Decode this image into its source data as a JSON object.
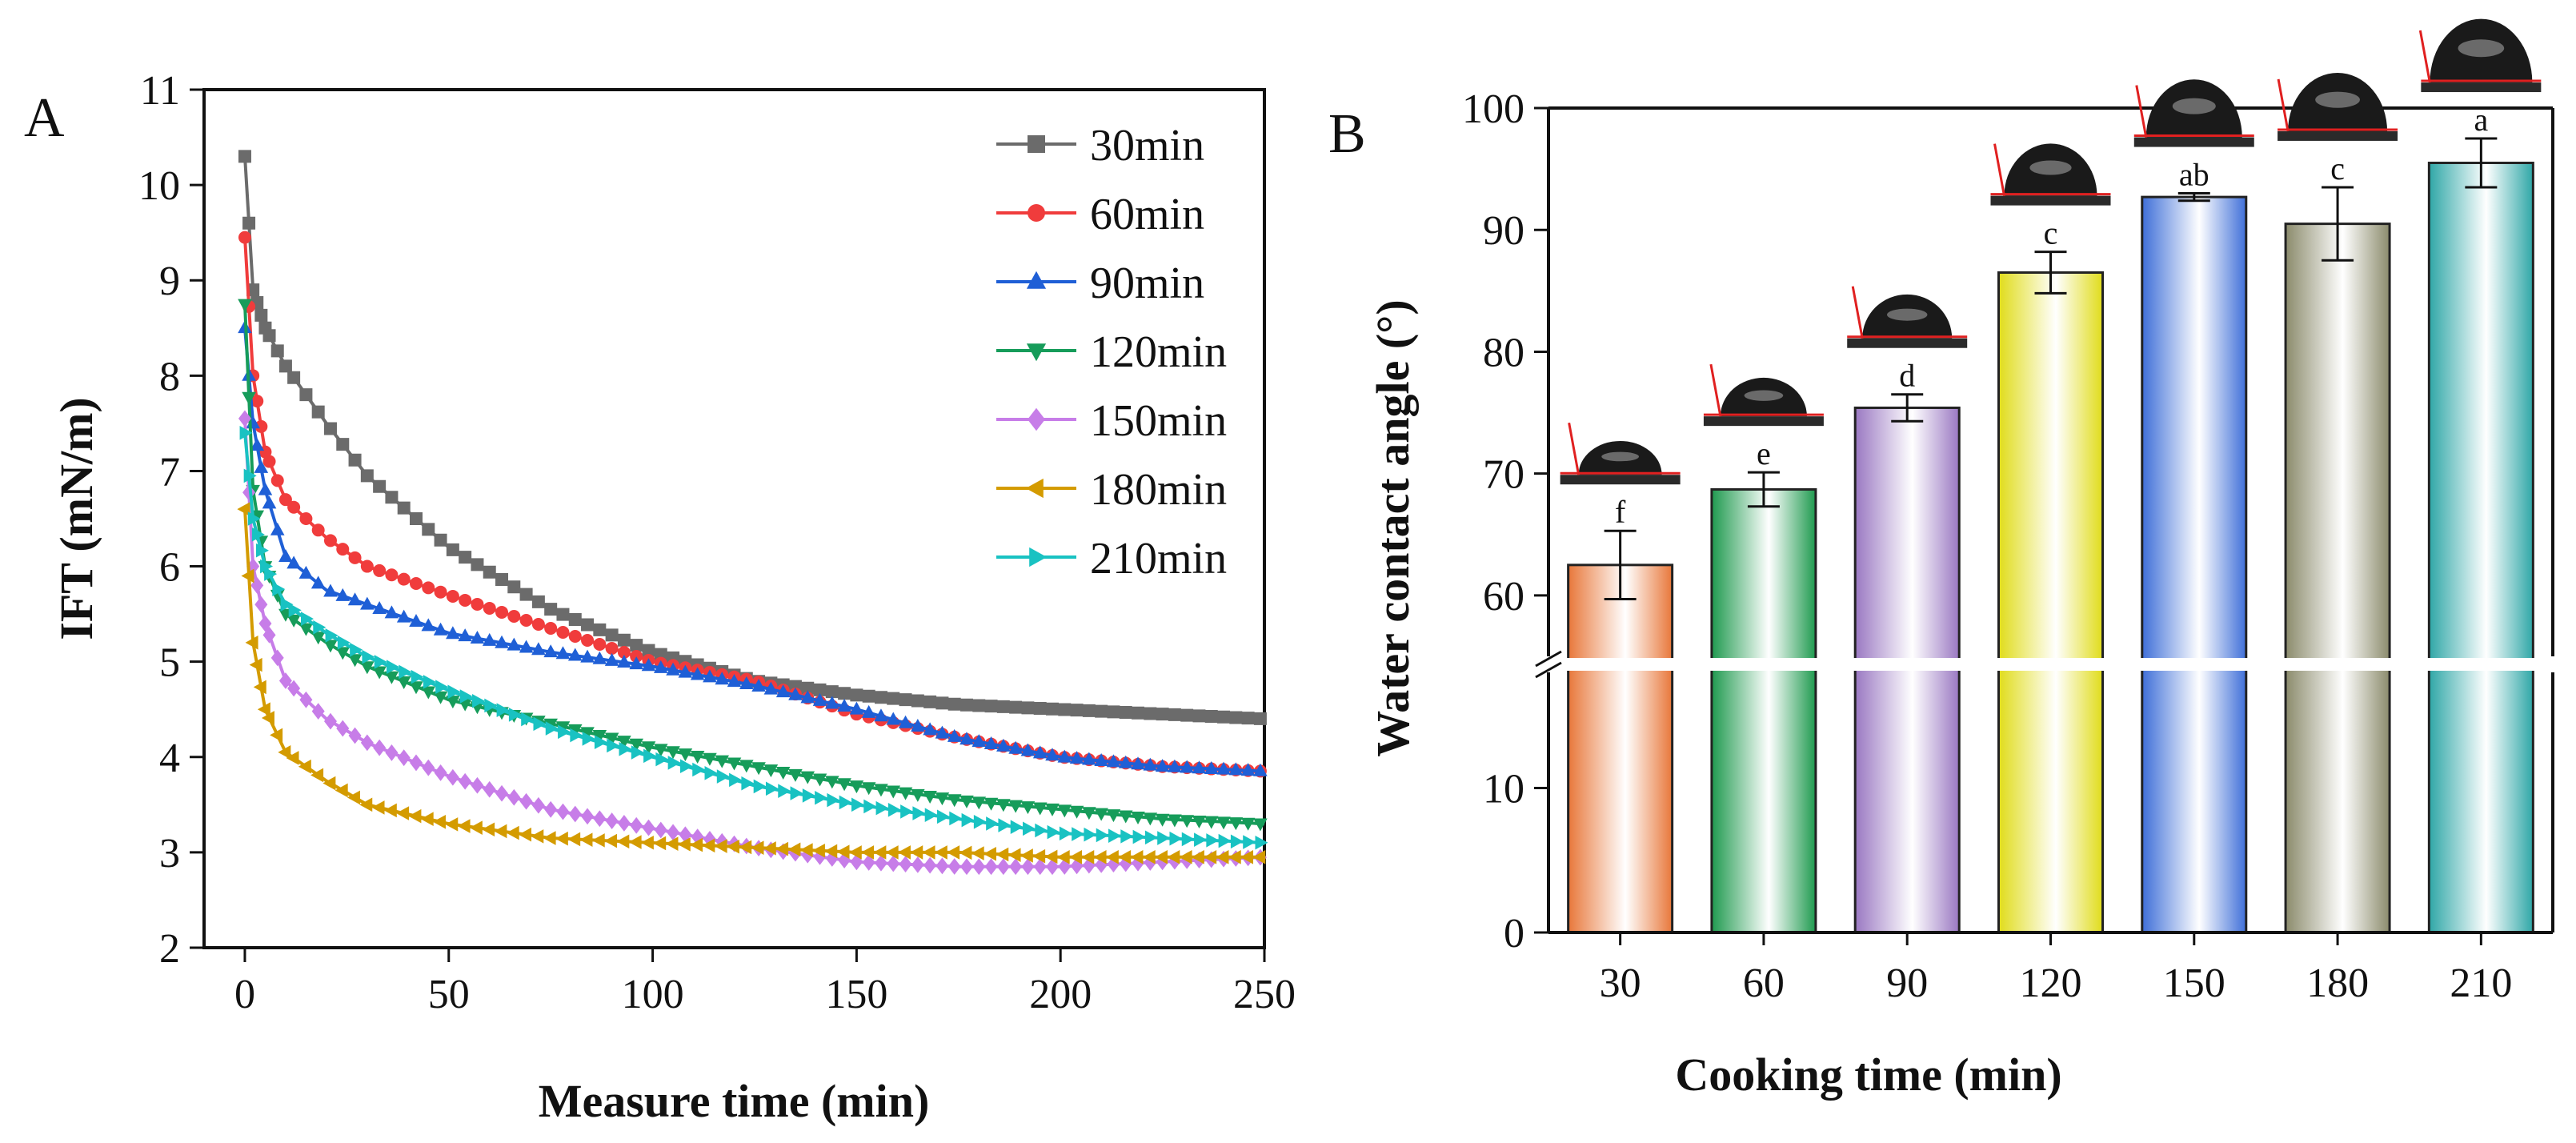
{
  "chart_data": [
    {
      "panel_label": "A",
      "type": "line",
      "title": "",
      "xlabel": "Measure time (min)",
      "ylabel": "IFT (mN/m)",
      "xlim": [
        -10,
        250
      ],
      "ylim": [
        2,
        11
      ],
      "xticks": [
        0,
        50,
        100,
        150,
        200,
        250
      ],
      "yticks": [
        2,
        3,
        4,
        5,
        6,
        7,
        8,
        9,
        10,
        11
      ],
      "grid": false,
      "legend": "top-right",
      "series": [
        {
          "name": "30min",
          "color": "#6b6b6b",
          "marker": "square",
          "x": [
            0,
            2,
            5,
            10,
            20,
            30,
            50,
            75,
            100,
            125,
            150,
            175,
            200,
            225,
            250
          ],
          "y": [
            10.3,
            8.9,
            8.5,
            8.1,
            7.5,
            6.95,
            6.2,
            5.55,
            5.1,
            4.8,
            4.65,
            4.55,
            4.5,
            4.45,
            4.4
          ]
        },
        {
          "name": "60min",
          "color": "#f03c3c",
          "marker": "circle",
          "x": [
            0,
            2,
            5,
            10,
            20,
            30,
            50,
            75,
            100,
            125,
            150,
            175,
            200,
            225,
            250
          ],
          "y": [
            9.45,
            8.0,
            7.2,
            6.7,
            6.3,
            6.0,
            5.7,
            5.35,
            5.0,
            4.8,
            4.45,
            4.2,
            4.0,
            3.9,
            3.85
          ]
        },
        {
          "name": "90min",
          "color": "#1f5fd6",
          "marker": "triangle-up",
          "x": [
            0,
            2,
            5,
            10,
            20,
            30,
            50,
            75,
            100,
            125,
            150,
            175,
            200,
            225,
            250
          ],
          "y": [
            8.5,
            7.5,
            6.8,
            6.1,
            5.75,
            5.6,
            5.3,
            5.1,
            4.95,
            4.75,
            4.5,
            4.2,
            4.0,
            3.9,
            3.85
          ]
        },
        {
          "name": "120min",
          "color": "#169c5a",
          "marker": "triangle-down",
          "x": [
            0,
            2,
            5,
            10,
            20,
            30,
            50,
            75,
            100,
            125,
            150,
            175,
            200,
            225,
            250
          ],
          "y": [
            8.75,
            6.8,
            6.0,
            5.5,
            5.2,
            4.95,
            4.6,
            4.35,
            4.1,
            3.9,
            3.7,
            3.55,
            3.45,
            3.35,
            3.3
          ]
        },
        {
          "name": "150min",
          "color": "#c77de8",
          "marker": "diamond",
          "x": [
            0,
            2,
            5,
            10,
            20,
            30,
            50,
            75,
            100,
            125,
            150,
            175,
            200,
            225,
            250
          ],
          "y": [
            7.55,
            6.0,
            5.4,
            4.8,
            4.4,
            4.15,
            3.8,
            3.45,
            3.25,
            3.05,
            2.9,
            2.85,
            2.85,
            2.9,
            2.95
          ]
        },
        {
          "name": "180min",
          "color": "#d49b00",
          "marker": "triangle-left",
          "x": [
            0,
            2,
            5,
            10,
            20,
            30,
            50,
            75,
            100,
            125,
            150,
            175,
            200,
            225,
            250
          ],
          "y": [
            6.6,
            5.2,
            4.5,
            4.05,
            3.75,
            3.5,
            3.3,
            3.15,
            3.1,
            3.05,
            3.0,
            3.0,
            2.95,
            2.95,
            2.95
          ]
        },
        {
          "name": "210min",
          "color": "#19c2c2",
          "marker": "triangle-right",
          "x": [
            0,
            2,
            5,
            10,
            20,
            30,
            50,
            75,
            100,
            125,
            150,
            175,
            200,
            225,
            250
          ],
          "y": [
            7.4,
            6.5,
            6.0,
            5.6,
            5.3,
            5.05,
            4.7,
            4.3,
            4.0,
            3.7,
            3.5,
            3.35,
            3.2,
            3.15,
            3.1
          ]
        }
      ]
    },
    {
      "panel_label": "B",
      "type": "bar",
      "title": "",
      "xlabel": "Cooking time (min)",
      "ylabel": "Water contact angle (°)",
      "axis_break": [
        18,
        55
      ],
      "ylim": [
        0,
        100
      ],
      "yticks_lower": [
        0,
        10
      ],
      "yticks_upper": [
        60,
        70,
        80,
        90,
        100
      ],
      "categories": [
        "30",
        "60",
        "90",
        "120",
        "150",
        "180",
        "210"
      ],
      "values": [
        62.5,
        68.7,
        75.4,
        86.5,
        92.7,
        90.5,
        95.5
      ],
      "errors": [
        2.8,
        1.4,
        1.1,
        1.7,
        0.3,
        3.0,
        2.0
      ],
      "significance_letters": [
        "f",
        "e",
        "d",
        "c",
        "ab",
        "c",
        "a"
      ],
      "bar_colors": [
        "#e8773a",
        "#1f9a4f",
        "#9a78c2",
        "#e0dc1a",
        "#3f6fd8",
        "#8b8b6c",
        "#2fa7a7"
      ],
      "droplet_image_count": 7
    }
  ]
}
